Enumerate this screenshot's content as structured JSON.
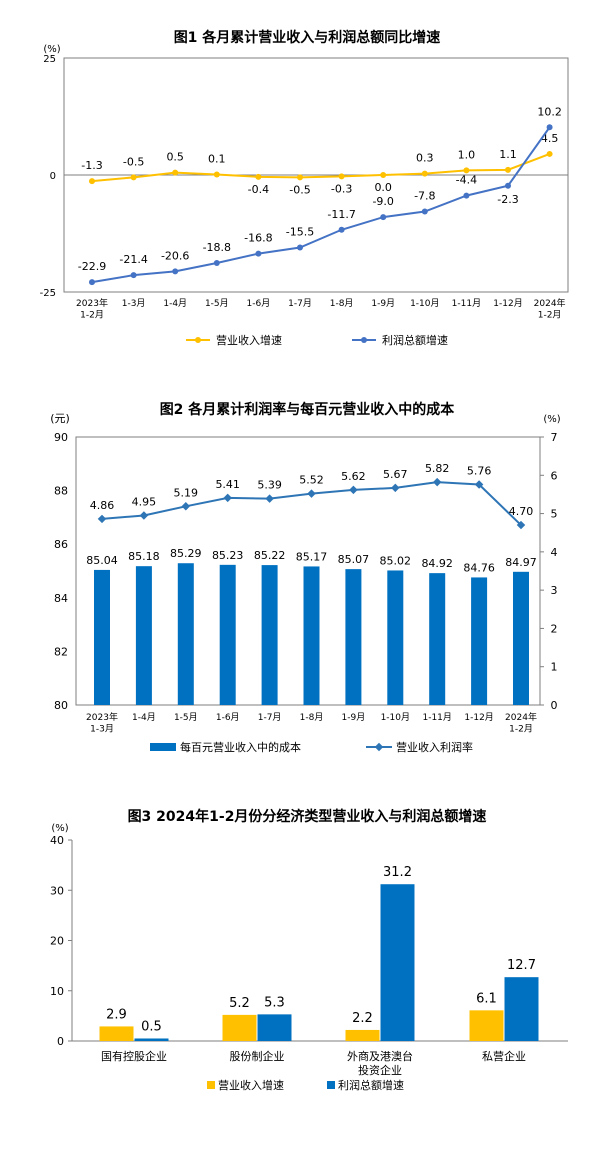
{
  "chart_data": [
    {
      "type": "line",
      "title": "图1  各月累计营业收入与利润总额同比增速",
      "ylabel": "(%)",
      "ylim": [
        -25,
        25
      ],
      "yticks": [
        "25",
        "0",
        "-25"
      ],
      "categories": [
        "2023年\n1-2月",
        "1-3月",
        "1-4月",
        "1-5月",
        "1-6月",
        "1-7月",
        "1-8月",
        "1-9月",
        "1-10月",
        "1-11月",
        "1-12月",
        "2024年\n1-2月"
      ],
      "series": [
        {
          "name": "营业收入增速",
          "color": "#FFC000",
          "values": [
            -1.3,
            -0.5,
            0.5,
            0.1,
            -0.4,
            -0.5,
            -0.3,
            0.0,
            0.3,
            1.0,
            1.1,
            4.5
          ],
          "labels": [
            "-1.3",
            "-0.5",
            "0.5",
            "0.1",
            "-0.4",
            "-0.5",
            "-0.3",
            "0.0",
            "0.3",
            "1.0",
            "1.1",
            "4.5"
          ]
        },
        {
          "name": "利润总额增速",
          "color": "#4472C4",
          "values": [
            -22.9,
            -21.4,
            -20.6,
            -18.8,
            -16.8,
            -15.5,
            -11.7,
            -9.0,
            -7.8,
            -4.4,
            -2.3,
            10.2
          ],
          "labels": [
            "-22.9",
            "-21.4",
            "-20.6",
            "-18.8",
            "-16.8",
            "-15.5",
            "-11.7",
            "-9.0",
            "-7.8",
            "-4.4",
            "-2.3",
            "10.2"
          ]
        }
      ],
      "legend": "bottom"
    },
    {
      "type": "bar",
      "title": "图2  各月累计利润率与每百元营业收入中的成本",
      "ylabel_left": "(元)",
      "ylabel_right": "(%)",
      "ylim_left": [
        80,
        90
      ],
      "ylim_right": [
        0,
        7
      ],
      "yticks_left": [
        "80",
        "82",
        "84",
        "86",
        "88",
        "90"
      ],
      "yticks_right": [
        "0",
        "1",
        "2",
        "3",
        "4",
        "5",
        "6",
        "7"
      ],
      "categories": [
        "2023年\n1-3月",
        "1-4月",
        "1-5月",
        "1-6月",
        "1-7月",
        "1-8月",
        "1-9月",
        "1-10月",
        "1-11月",
        "1-12月",
        "2024年\n1-2月"
      ],
      "series": [
        {
          "name": "每百元营业收入中的成本",
          "kind": "bar",
          "axis": "left",
          "color": "#0070C0",
          "values": [
            85.04,
            85.18,
            85.29,
            85.23,
            85.22,
            85.17,
            85.07,
            85.02,
            84.92,
            84.76,
            84.97
          ],
          "labels": [
            "85.04",
            "85.18",
            "85.29",
            "85.23",
            "85.22",
            "85.17",
            "85.07",
            "85.02",
            "84.92",
            "84.76",
            "84.97"
          ]
        },
        {
          "name": "营业收入利润率",
          "kind": "line",
          "axis": "right",
          "color": "#2E75B6",
          "values": [
            4.86,
            4.95,
            5.19,
            5.41,
            5.39,
            5.52,
            5.62,
            5.67,
            5.82,
            5.76,
            4.7
          ],
          "labels": [
            "4.86",
            "4.95",
            "5.19",
            "5.41",
            "5.39",
            "5.52",
            "5.62",
            "5.67",
            "5.82",
            "5.76",
            "4.70"
          ]
        }
      ],
      "legend": "bottom"
    },
    {
      "type": "bar",
      "title": "图3  2024年1-2月份分经济类型营业收入与利润总额增速",
      "ylabel": "(%)",
      "ylim": [
        0,
        40
      ],
      "yticks": [
        "0",
        "10",
        "20",
        "30",
        "40"
      ],
      "categories": [
        "国有控股企业",
        "股份制企业",
        "外商及港澳台\n投资企业",
        "私营企业"
      ],
      "series": [
        {
          "name": "营业收入增速",
          "color": "#FFC000",
          "values": [
            2.9,
            5.2,
            2.2,
            6.1
          ],
          "labels": [
            "2.9",
            "5.2",
            "2.2",
            "6.1"
          ]
        },
        {
          "name": "利润总额增速",
          "color": "#0070C0",
          "values": [
            0.5,
            5.3,
            31.2,
            12.7
          ],
          "labels": [
            "0.5",
            "5.3",
            "31.2",
            "12.7"
          ]
        }
      ],
      "legend": "bottom"
    }
  ]
}
